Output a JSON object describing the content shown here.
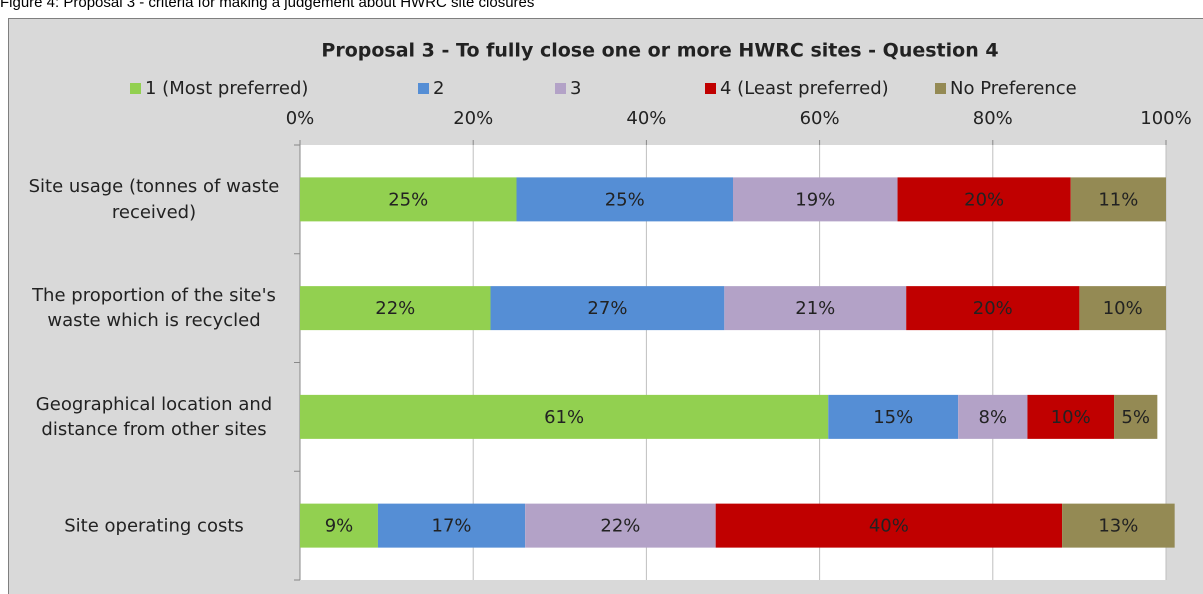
{
  "caption": "Figure 4:  Proposal 3 -  criteria for making a judgement about HWRC site closures",
  "chart_data": {
    "type": "stacked-bar-horizontal",
    "title": "Proposal 3 - To fully close one or more HWRC sites - Question 4",
    "categories": [
      "Site usage (tonnes of waste received)",
      "The proportion of the site's waste which is recycled",
      "Geographical location and distance from other sites",
      "Site operating costs"
    ],
    "series": [
      {
        "name": "1 (Most preferred)",
        "color": "#92d050",
        "values": [
          25,
          22,
          61,
          9
        ],
        "value_labels": [
          "25%",
          "22%",
          "61%",
          "9%"
        ]
      },
      {
        "name": "2",
        "color": "#558ed5",
        "values": [
          25,
          27,
          15,
          17
        ],
        "value_labels": [
          "25%",
          "27%",
          "15%",
          "17%"
        ]
      },
      {
        "name": "3",
        "color": "#b3a2c7",
        "values": [
          19,
          21,
          8,
          22
        ],
        "value_labels": [
          "19%",
          "21%",
          "8%",
          "22%"
        ]
      },
      {
        "name": "4 (Least preferred)",
        "color": "#c00000",
        "values": [
          20,
          20,
          10,
          40
        ],
        "value_labels": [
          "20%",
          "20%",
          "10%",
          "40%"
        ]
      },
      {
        "name": "No Preference",
        "color": "#948a54",
        "values": [
          11,
          10,
          5,
          13
        ],
        "value_labels": [
          "11%",
          "10%",
          "5%",
          "13%"
        ]
      }
    ],
    "xlim": [
      0,
      100
    ],
    "xticks": [
      {
        "value": 0,
        "label": "0%"
      },
      {
        "value": 20,
        "label": "20%"
      },
      {
        "value": 40,
        "label": "40%"
      },
      {
        "value": 60,
        "label": "60%"
      },
      {
        "value": 80,
        "label": "80%"
      },
      {
        "value": 100,
        "label": "100%"
      }
    ],
    "grid": true,
    "legend": "top"
  }
}
